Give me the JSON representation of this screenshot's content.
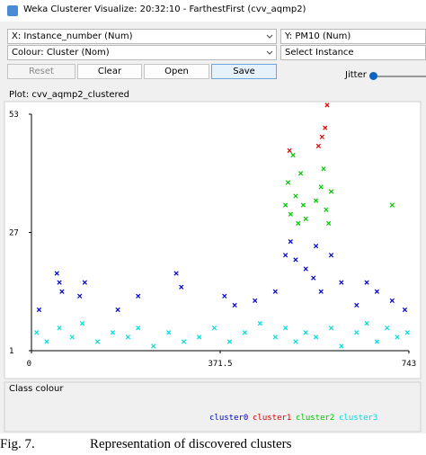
{
  "window": {
    "title": "Weka Clusterer Visualize: 20:32:10 - FarthestFirst (cvv_aqmp2)"
  },
  "controls": {
    "x_axis": "X: Instance_number (Num)",
    "y_axis": "Y: PM10 (Num)",
    "colour": "Colour: Cluster (Nom)",
    "select": "Select Instance",
    "buttons": [
      "Reset",
      "Clear",
      "Open",
      "Save"
    ],
    "jitter": "Jitter"
  },
  "chart_data": {
    "type": "scatter",
    "title": "Plot: cvv_aqmp2_clustered",
    "legend_title": "Class colour",
    "xlim": [
      0,
      743
    ],
    "ylim": [
      1,
      53
    ],
    "xticks": [
      0,
      371.5,
      743
    ],
    "yticks": [
      1,
      27,
      53
    ],
    "series": [
      {
        "name": "cluster0",
        "color": "#0000c8",
        "x": [
          15,
          50,
          55,
          60,
          95,
          105,
          170,
          210,
          285,
          295,
          380,
          400,
          440,
          480,
          500,
          510,
          520,
          540,
          555,
          560,
          570,
          590,
          610,
          640,
          660,
          680,
          710,
          735
        ],
        "values": [
          10,
          18,
          16,
          14,
          13,
          16,
          10,
          13,
          18,
          15,
          13,
          11,
          12,
          14,
          22,
          25,
          21,
          19,
          17,
          24,
          14,
          22,
          16,
          11,
          16,
          14,
          12,
          10
        ]
      },
      {
        "name": "cluster1",
        "color": "#dd0000",
        "x": [
          508,
          565,
          572,
          578,
          582
        ],
        "values": [
          45,
          46,
          48,
          50,
          55
        ]
      },
      {
        "name": "cluster2",
        "color": "#00c800",
        "x": [
          500,
          505,
          510,
          515,
          520,
          525,
          530,
          535,
          540,
          560,
          570,
          575,
          580,
          585,
          590,
          710
        ],
        "values": [
          33,
          38,
          31,
          44,
          35,
          29,
          40,
          33,
          30,
          34,
          37,
          41,
          32,
          29,
          36,
          33
        ]
      },
      {
        "name": "cluster3",
        "color": "#00dcdc",
        "x": [
          10,
          30,
          55,
          80,
          100,
          130,
          160,
          190,
          210,
          240,
          270,
          300,
          330,
          360,
          390,
          420,
          450,
          480,
          500,
          520,
          540,
          560,
          590,
          610,
          640,
          660,
          680,
          700,
          720,
          740
        ],
        "values": [
          5,
          3,
          6,
          4,
          7,
          3,
          5,
          4,
          6,
          2,
          5,
          3,
          4,
          6,
          3,
          5,
          7,
          4,
          6,
          3,
          5,
          4,
          6,
          2,
          5,
          7,
          3,
          6,
          4,
          5
        ]
      }
    ]
  },
  "caption": {
    "label": "Fig. 7.",
    "text": "Representation of discovered clusters"
  }
}
